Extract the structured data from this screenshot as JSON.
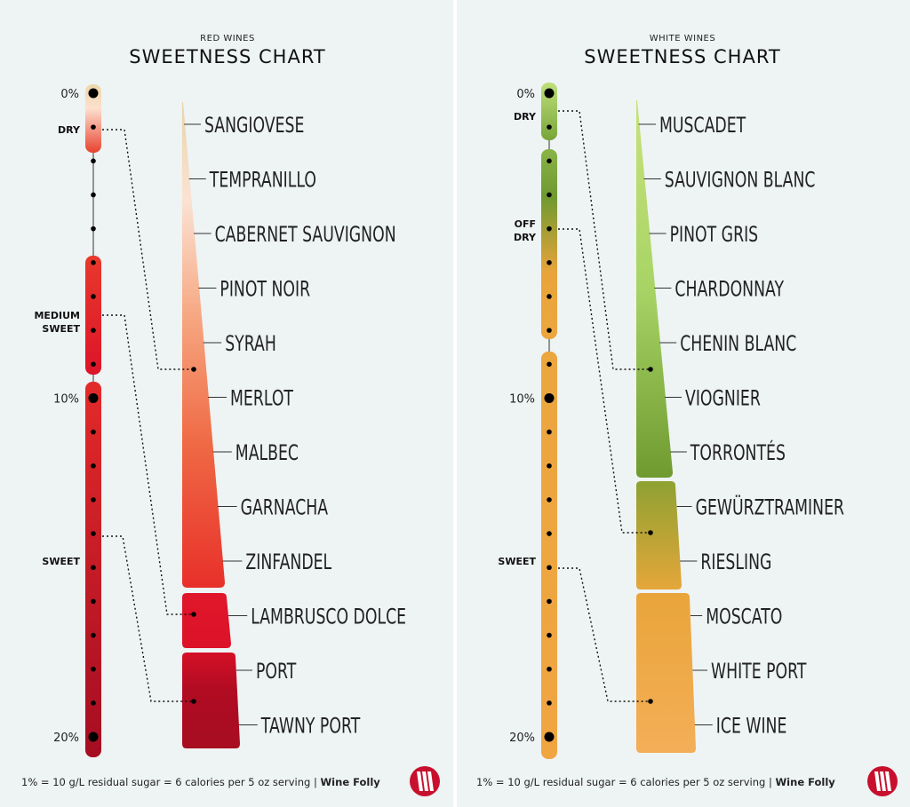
{
  "footer": {
    "note": "1% = 10 g/L residual sugar = 6 calories per 5 oz serving | ",
    "brand": "Wine Folly"
  },
  "colors": {
    "background": "#eef3f3",
    "divider": "#ffffff",
    "brand_red": "#c8102e"
  },
  "panels": [
    {
      "id": "red",
      "subtitle": "RED WINES",
      "title": "SWEETNESS CHART",
      "scale_labels": [
        "0%",
        "10%",
        "20%"
      ],
      "segments": [
        {
          "label": [
            "DRY"
          ]
        },
        {
          "label": [
            "MEDIUM",
            "SWEET"
          ]
        },
        {
          "label": [
            "SWEET"
          ]
        }
      ],
      "wines": [
        "SANGIOVESE",
        "TEMPRANILLO",
        "CABERNET SAUVIGNON",
        "PINOT NOIR",
        "SYRAH",
        "MERLOT",
        "MALBEC",
        "GARNACHA",
        "ZINFANDEL",
        "LAMBRUSCO DOLCE",
        "PORT",
        "TAWNY PORT"
      ],
      "colors": {
        "light": "#ecd7a7",
        "mid": "#ef6a45",
        "deep": "#e8302a",
        "dark": "#a70d22"
      }
    },
    {
      "id": "white",
      "subtitle": "WHITE WINES",
      "title": "SWEETNESS CHART",
      "scale_labels": [
        "0%",
        "10%",
        "20%"
      ],
      "segments": [
        {
          "label": [
            "DRY"
          ]
        },
        {
          "label": [
            "OFF",
            "DRY"
          ]
        },
        {
          "label": [
            "SWEET"
          ]
        }
      ],
      "wines": [
        "MUSCADET",
        "SAUVIGNON BLANC",
        "PINOT GRIS",
        "CHARDONNAY",
        "CHENIN BLANC",
        "VIOGNIER",
        "TORRONTÉS",
        "GEWÜRZTRAMINER",
        "RIESLING",
        "MOSCATO",
        "WHITE PORT",
        "ICE WINE"
      ],
      "colors": {
        "light": "#c8e27a",
        "mid": "#6f9a30",
        "deep": "#e8a43a",
        "dark": "#f3ad55"
      }
    }
  ]
}
